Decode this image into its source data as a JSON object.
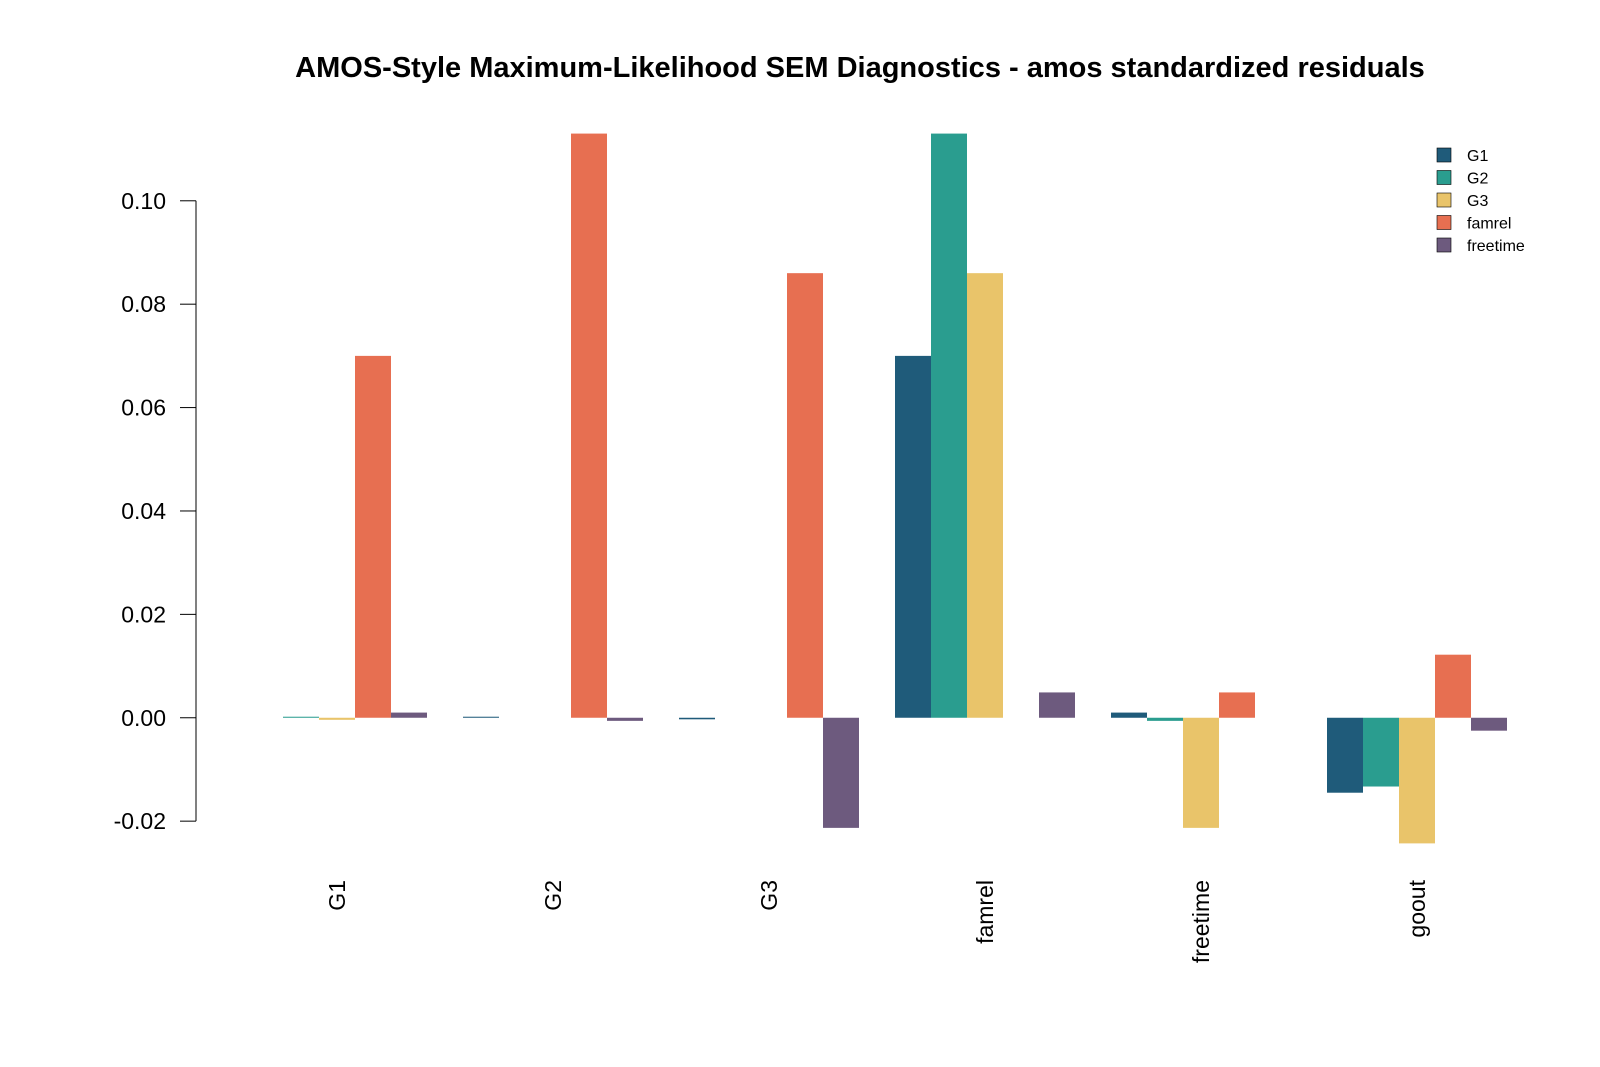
{
  "chart_data": {
    "type": "bar",
    "title": "AMOS-Style Maximum-Likelihood SEM Diagnostics - amos standardized residuals",
    "xlabel": "",
    "ylabel": "",
    "categories": [
      "G1",
      "G2",
      "G3",
      "famrel",
      "freetime",
      "goout"
    ],
    "ylim": [
      -0.025,
      0.1135
    ],
    "yticks": [
      "-0.02",
      "0.00",
      "0.02",
      "0.04",
      "0.06",
      "0.08",
      "0.10"
    ],
    "grid": false,
    "legend_position": "top-right",
    "series": [
      {
        "name": "G1",
        "color": "#1f5b7a",
        "values": [
          0.0,
          0.0002,
          -0.0003,
          0.07,
          0.001,
          -0.0145
        ]
      },
      {
        "name": "G2",
        "color": "#2a9d8f",
        "values": [
          0.0002,
          0.0,
          0.0,
          0.113,
          -0.0006,
          -0.0133
        ]
      },
      {
        "name": "G3",
        "color": "#e9c46a",
        "values": [
          -0.0004,
          0.0,
          0.0,
          0.086,
          -0.0213,
          -0.0243
        ]
      },
      {
        "name": "famrel",
        "color": "#e76f51",
        "values": [
          0.07,
          0.113,
          0.086,
          0.0,
          0.0049,
          0.0122
        ]
      },
      {
        "name": "freetime",
        "color": "#6d5a7e",
        "values": [
          0.001,
          -0.0006,
          -0.0213,
          0.0049,
          0.0,
          -0.0025
        ]
      }
    ]
  }
}
